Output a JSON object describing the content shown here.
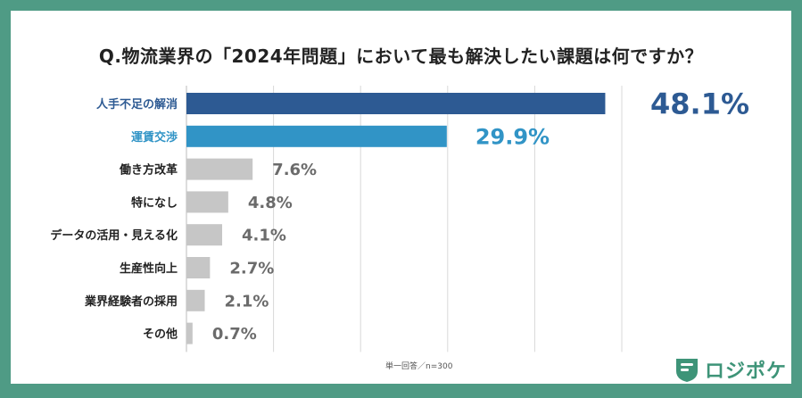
{
  "chart_data": {
    "type": "bar",
    "orientation": "horizontal",
    "title": "Q.物流業界の「2024年問題」において最も解決したい課題は何ですか？",
    "categories": [
      "人手不足の解消",
      "運賃交渉",
      "働き方改革",
      "特になし",
      "データの活用・見える化",
      "生産性向上",
      "業界経験者の採用",
      "その他"
    ],
    "values": [
      48.1,
      29.9,
      7.6,
      4.8,
      4.1,
      2.7,
      2.1,
      0.7
    ],
    "value_labels": [
      "48.1%",
      "29.9%",
      "7.6%",
      "4.8%",
      "4.1%",
      "2.7%",
      "2.1%",
      "0.7%"
    ],
    "xlim": [
      0,
      50
    ],
    "grid": true,
    "note": "単一回答／n=300"
  },
  "colors": {
    "primary": "#2d5a93",
    "secondary": "#3194c6",
    "other": "#c6c6c6",
    "other_text": "#6b6b6b",
    "grid": "#d8d8d8",
    "brand": "#3e9478",
    "frame": "#4f9b85"
  },
  "brand": {
    "name": "ロジポケ",
    "icon": "shield-logo-icon"
  }
}
